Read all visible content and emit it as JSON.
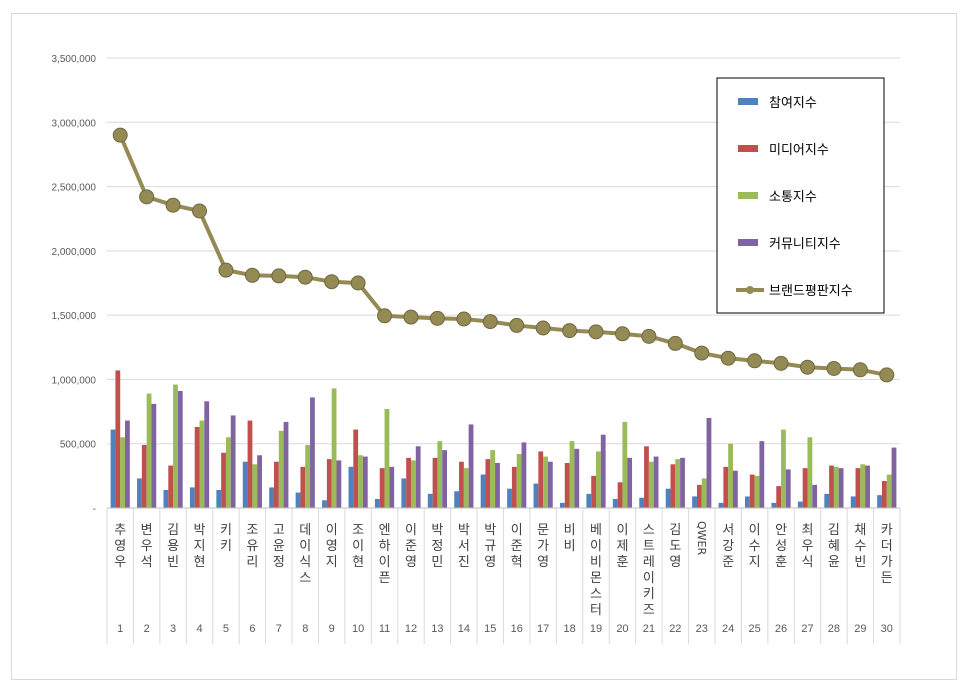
{
  "chart_data": {
    "type": "bar",
    "title": "",
    "xlabel": "",
    "ylabel": "",
    "ylim": [
      0,
      3500000
    ],
    "y_ticks": [
      "-",
      "500,000",
      "1,000,000",
      "1,500,000",
      "2,000,000",
      "2,500,000",
      "3,000,000",
      "3,500,000"
    ],
    "grid": true,
    "legend_position": "top-right",
    "ranks": [
      "1",
      "2",
      "3",
      "4",
      "5",
      "6",
      "7",
      "8",
      "9",
      "10",
      "11",
      "12",
      "13",
      "14",
      "15",
      "16",
      "17",
      "18",
      "19",
      "20",
      "21",
      "22",
      "23",
      "24",
      "25",
      "26",
      "27",
      "28",
      "29",
      "30"
    ],
    "categories": [
      "추영우",
      "변우석",
      "김용빈",
      "박지현",
      "키키",
      "조유리",
      "고윤정",
      "데이식스",
      "이영지",
      "조이현",
      "엔하이픈",
      "이준영",
      "박정민",
      "박서진",
      "박규영",
      "이준혁",
      "문가영",
      "비비",
      "베이비몬스터",
      "이제훈",
      "스트레이키즈",
      "김도영",
      "QWER",
      "서강준",
      "이수지",
      "안성훈",
      "최우식",
      "김혜윤",
      "채수빈",
      "카더가든"
    ],
    "series": [
      {
        "name": "참여지수",
        "kind": "bar",
        "color": "#4f81bd",
        "values": [
          610000,
          230000,
          140000,
          160000,
          140000,
          360000,
          160000,
          120000,
          60000,
          320000,
          70000,
          230000,
          110000,
          130000,
          260000,
          150000,
          190000,
          40000,
          110000,
          70000,
          80000,
          150000,
          90000,
          40000,
          90000,
          40000,
          50000,
          110000,
          90000,
          100000
        ]
      },
      {
        "name": "미디어지수",
        "kind": "bar",
        "color": "#c0504d",
        "values": [
          1070000,
          490000,
          330000,
          630000,
          430000,
          680000,
          360000,
          320000,
          380000,
          610000,
          310000,
          390000,
          390000,
          360000,
          380000,
          320000,
          440000,
          350000,
          250000,
          200000,
          480000,
          340000,
          180000,
          320000,
          260000,
          170000,
          310000,
          330000,
          310000,
          210000
        ]
      },
      {
        "name": "소통지수",
        "kind": "bar",
        "color": "#9bbb59",
        "values": [
          550000,
          890000,
          960000,
          680000,
          550000,
          340000,
          600000,
          490000,
          930000,
          410000,
          770000,
          370000,
          520000,
          310000,
          450000,
          420000,
          400000,
          520000,
          440000,
          670000,
          360000,
          380000,
          230000,
          500000,
          250000,
          610000,
          550000,
          320000,
          340000,
          260000
        ]
      },
      {
        "name": "커뮤니티지수",
        "kind": "bar",
        "color": "#8064a2",
        "values": [
          680000,
          810000,
          910000,
          830000,
          720000,
          410000,
          670000,
          860000,
          370000,
          400000,
          320000,
          480000,
          450000,
          650000,
          350000,
          510000,
          360000,
          460000,
          570000,
          390000,
          400000,
          390000,
          700000,
          290000,
          520000,
          300000,
          180000,
          310000,
          330000,
          470000
        ]
      },
      {
        "name": "브랜드평판지수",
        "kind": "line",
        "color": "#948a54",
        "values": [
          2900000,
          2420000,
          2355000,
          2310000,
          1850000,
          1810000,
          1805000,
          1795000,
          1760000,
          1750000,
          1495000,
          1485000,
          1475000,
          1470000,
          1450000,
          1420000,
          1400000,
          1380000,
          1370000,
          1355000,
          1335000,
          1280000,
          1205000,
          1165000,
          1145000,
          1125000,
          1095000,
          1085000,
          1075000,
          1035000
        ]
      }
    ]
  }
}
